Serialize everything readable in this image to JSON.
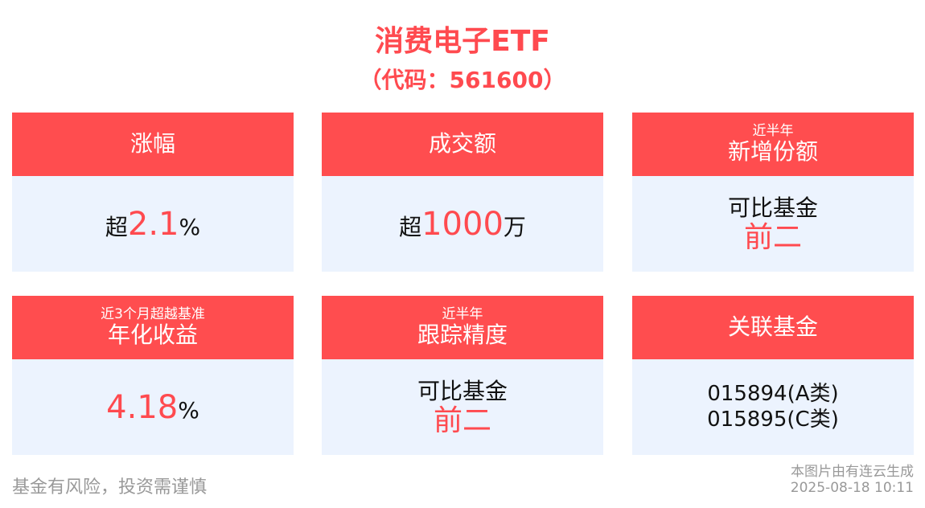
{
  "header": {
    "title": "消费电子ETF",
    "code": "（代码：561600）"
  },
  "cards": [
    {
      "sub": "",
      "title": "涨幅",
      "prefix": "超",
      "value": "2.1",
      "suffix": "%"
    },
    {
      "sub": "",
      "title": "成交额",
      "prefix": "超",
      "value": "1000",
      "suffix": "万"
    },
    {
      "sub": "近半年",
      "title": "新增份额",
      "line1": "可比基金",
      "line2": "前二"
    },
    {
      "sub": "近3个月超越基准",
      "title": "年化收益",
      "prefix": "",
      "value": "4.18",
      "suffix": "%"
    },
    {
      "sub": "近半年",
      "title": "跟踪精度",
      "line1": "可比基金",
      "line2": "前二"
    },
    {
      "sub": "",
      "title": "关联基金",
      "codes": [
        "015894(A类)",
        "015895(C类)"
      ]
    }
  ],
  "footer": {
    "disclaimer": "基金有风险，投资需谨慎",
    "source": "本图片由有连云生成",
    "timestamp": "2025-08-18 10:11"
  },
  "colors": {
    "accent": "#ff4d4f",
    "body_bg": "#ecf3fe"
  }
}
